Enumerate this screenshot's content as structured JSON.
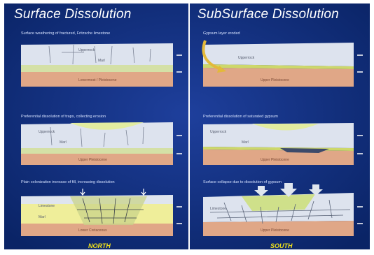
{
  "colors": {
    "background_outer": "#0a2a6e",
    "background_inner": "#132f86",
    "divider": "#ffffff",
    "surface_gray": "#dde3ee",
    "limestone_green": "#d7e4a4",
    "basal_salmon": "#e2a888",
    "yellow_band": "#efee9a",
    "footer_label": "#f0e11b",
    "arrow_yellow": "#e3b93a"
  },
  "left_panel": {
    "title": "Surface Dissolution",
    "footer": "NORTH",
    "steps": [
      {
        "caption": "Surface weathering of fractured, Fritzsche limestone",
        "labels": [
          "Upperrock",
          "Marl",
          "Lowermost / Pleistocene"
        ]
      },
      {
        "caption": "Preferential dissolution of traps, collecting erosion",
        "labels": [
          "Upperrock",
          "Marl",
          "Upper Pleistocene"
        ]
      },
      {
        "caption": "Plain colonization increase of fill, increasing dissolution",
        "labels": [
          "Limestone",
          "Marl",
          "Lower Cretaceous"
        ]
      }
    ]
  },
  "right_panel": {
    "title": "SubSurface Dissolution",
    "footer": "SOUTH",
    "steps": [
      {
        "caption": "Gypsum layer eroded",
        "labels": [
          "Upperrock",
          "Upper Pleistocene"
        ]
      },
      {
        "caption": "Preferential dissolution of saturated gypsum",
        "labels": [
          "Upperrock",
          "Marl",
          "Upper Pleistocene"
        ]
      },
      {
        "caption": "Surface collapse due to dissolution of gypsum",
        "labels": [
          "Limestone",
          "Upper Pleistocene"
        ]
      }
    ]
  }
}
